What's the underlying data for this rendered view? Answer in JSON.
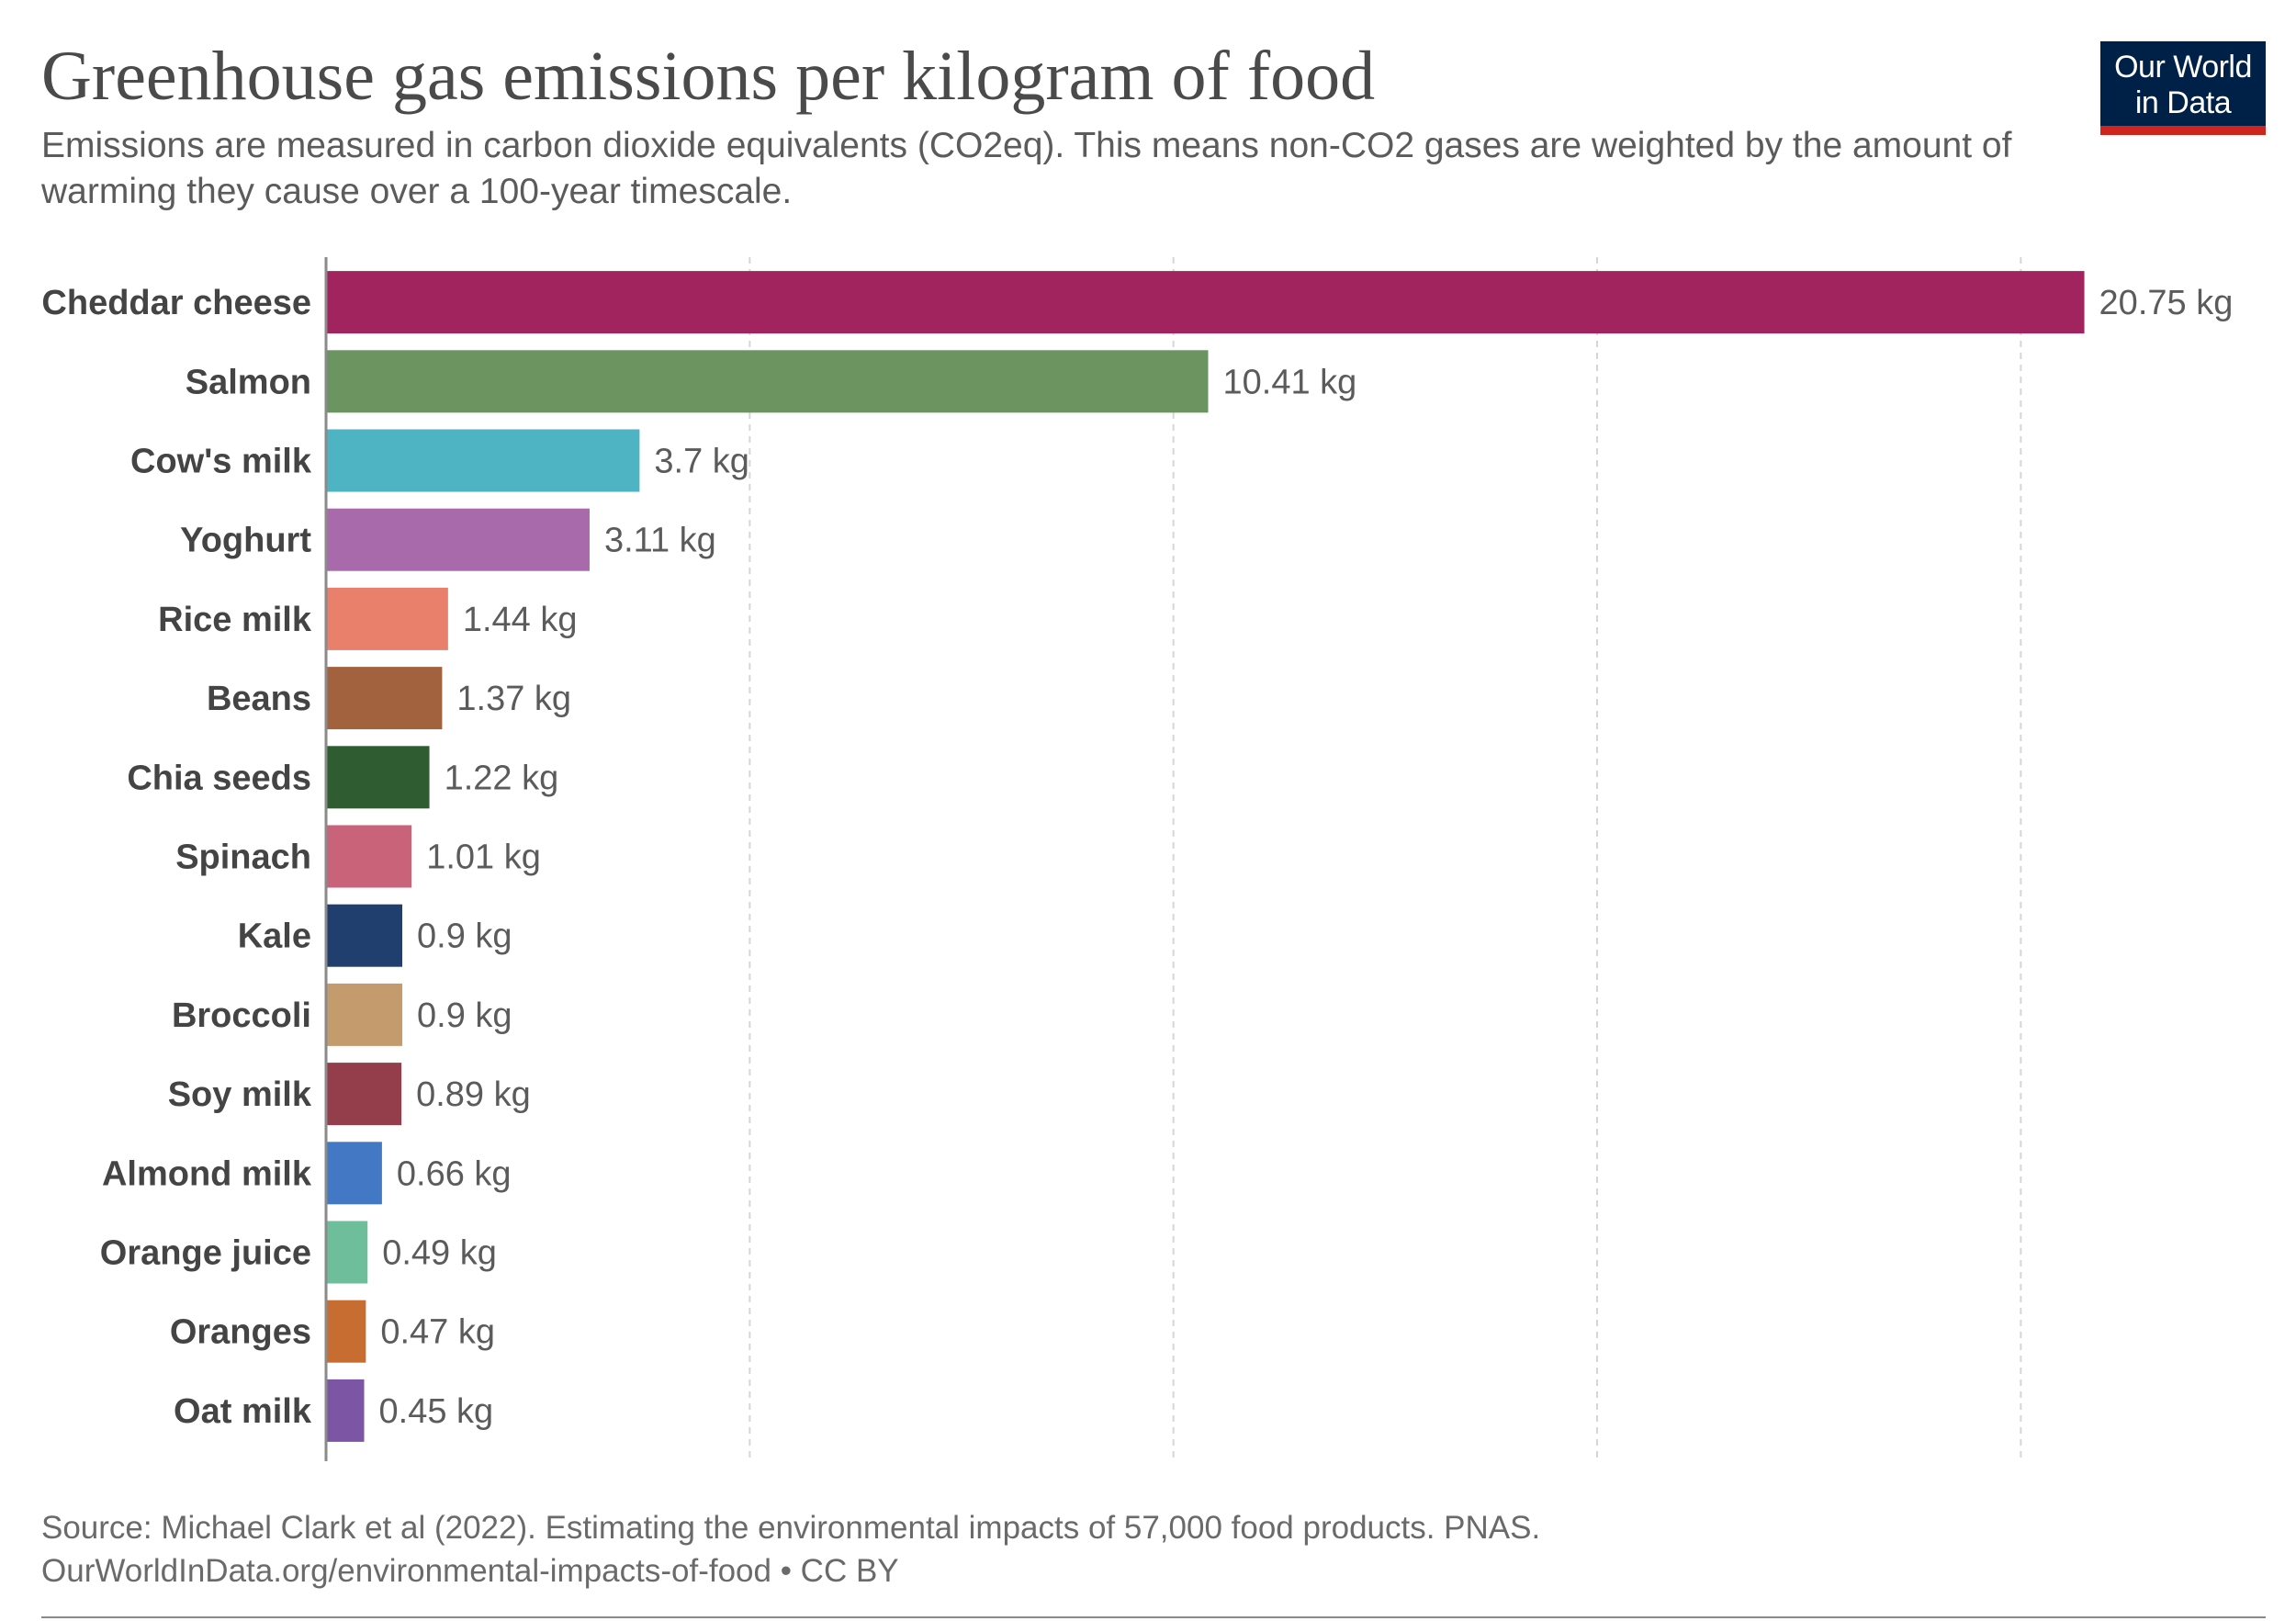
{
  "header": {
    "title": "Greenhouse gas emissions per kilogram of food",
    "subtitle": "Emissions are measured in carbon dioxide equivalents (CO2eq). This means non-CO2 gases are weighted by the amount of warming they cause over a 100-year timescale."
  },
  "logo": {
    "line1": "Our World",
    "line2": "in Data"
  },
  "footer": {
    "source_line1": "Source: Michael Clark et al (2022). Estimating the environmental impacts of 57,000 food products. PNAS.",
    "source_line2": "OurWorldInData.org/environmental-impacts-of-food • CC BY"
  },
  "chart_data": {
    "type": "bar",
    "orientation": "horizontal",
    "title": "Greenhouse gas emissions per kilogram of food",
    "unit": "kg",
    "xlim": [
      0,
      21.5
    ],
    "gridlines": [
      5,
      10,
      15,
      20
    ],
    "categories": [
      "Cheddar cheese",
      "Salmon",
      "Cow's milk",
      "Yoghurt",
      "Rice milk",
      "Beans",
      "Chia seeds",
      "Spinach",
      "Kale",
      "Broccoli",
      "Soy milk",
      "Almond milk",
      "Orange juice",
      "Oranges",
      "Oat milk"
    ],
    "values": [
      20.75,
      10.41,
      3.7,
      3.11,
      1.44,
      1.37,
      1.22,
      1.01,
      0.9,
      0.9,
      0.89,
      0.66,
      0.49,
      0.47,
      0.45
    ],
    "value_labels": [
      "20.75 kg",
      "10.41 kg",
      "3.7 kg",
      "3.11 kg",
      "1.44 kg",
      "1.37 kg",
      "1.22 kg",
      "1.01 kg",
      "0.9 kg",
      "0.9 kg",
      "0.89 kg",
      "0.66 kg",
      "0.49 kg",
      "0.47 kg",
      "0.45 kg"
    ],
    "colors": [
      "#a2245e",
      "#6b9460",
      "#4eb4c4",
      "#a96aab",
      "#e8806c",
      "#a3623e",
      "#2f5c30",
      "#c8637a",
      "#203f6e",
      "#c49b6c",
      "#953e4b",
      "#4379c4",
      "#6ebd9b",
      "#c86d32",
      "#7c56a4"
    ],
    "grid": true,
    "legend": "none"
  }
}
